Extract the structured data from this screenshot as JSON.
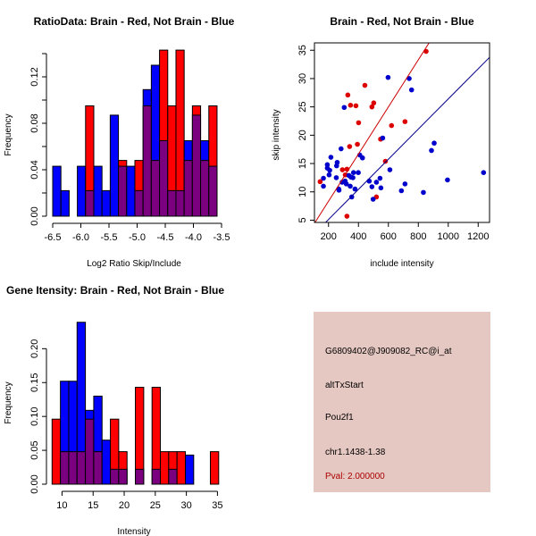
{
  "colors": {
    "brain": "#ff0000",
    "not_brain": "#0000ff",
    "overlap": "#7a0080",
    "info_bg": "#e6c8c2",
    "pval": "#aa0000"
  },
  "chart_data": [
    {
      "type": "bar",
      "subtype": "overlaid-histogram",
      "title": "RatioData: Brain - Red, Not Brain - Blue",
      "xlabel": "Log2 Ratio Skip/Include",
      "ylabel": "Frequency",
      "xlim": [
        -6.5,
        -3.5
      ],
      "ylim": [
        0,
        0.14
      ],
      "xticks": [
        "-6.5",
        "-6.0",
        "-5.5",
        "-5.0",
        "-4.5",
        "-4.0",
        "-3.5"
      ],
      "xtick_values": [
        -6.5,
        -6.0,
        -5.5,
        -5.0,
        -4.5,
        -4.0,
        -3.5
      ],
      "yticks": [
        "0.00",
        "0.04",
        "0.08",
        "0.12"
      ],
      "ytick_values": [
        0,
        0.04,
        0.08,
        0.12
      ],
      "bin_start": -6.5,
      "bin_width": 0.146,
      "series": [
        {
          "name": "Brain",
          "color": "red",
          "values": [
            0,
            0,
            0,
            0,
            0.095,
            0,
            0,
            0,
            0.048,
            0,
            0.048,
            0.095,
            0.048,
            0.143,
            0.095,
            0.143,
            0.048,
            0.095,
            0.048,
            0.095
          ]
        },
        {
          "name": "Not Brain",
          "color": "blue",
          "values": [
            0.043,
            0.022,
            0,
            0.043,
            0.022,
            0.043,
            0.022,
            0.087,
            0.043,
            0.043,
            0.022,
            0.109,
            0.13,
            0.065,
            0.022,
            0.022,
            0.065,
            0.087,
            0.065,
            0.043
          ]
        }
      ]
    },
    {
      "type": "scatter",
      "title": "Brain - Red, Not Brain - Blue",
      "xlabel": "include intensity",
      "ylabel": "skip intensity",
      "xlim": [
        106,
        1276
      ],
      "ylim": [
        4.6,
        36.3
      ],
      "xticks": [
        "200",
        "400",
        "600",
        "800",
        "1000",
        "1200"
      ],
      "xtick_values": [
        200,
        400,
        600,
        800,
        1000,
        1200
      ],
      "yticks": [
        "5",
        "10",
        "15",
        "20",
        "25",
        "30",
        "35"
      ],
      "ytick_values": [
        5,
        10,
        15,
        20,
        25,
        30,
        35
      ],
      "series": [
        {
          "name": "Brain",
          "color": "red",
          "fit": {
            "slope": 0.0416,
            "intercept": 0.03
          },
          "points": [
            [
              144,
              11.8
            ],
            [
              293,
              13.9
            ],
            [
              323,
              14.0
            ],
            [
              312,
              13.0
            ],
            [
              329,
              27.1
            ],
            [
              347,
              25.3
            ],
            [
              341,
              18.0
            ],
            [
              383,
              25.2
            ],
            [
              401,
              22.2
            ],
            [
              393,
              18.4
            ],
            [
              443,
              28.8
            ],
            [
              490,
              25.0
            ],
            [
              502,
              25.7
            ],
            [
              548,
              19.3
            ],
            [
              621,
              21.7
            ],
            [
              580,
              15.4
            ],
            [
              711,
              22.4
            ],
            [
              852,
              34.8
            ],
            [
              520,
              9.1
            ],
            [
              323,
              5.7
            ]
          ]
        },
        {
          "name": "Not Brain",
          "color": "blue",
          "fit": {
            "slope": 0.0266,
            "intercept": -0.2
          },
          "points": [
            [
              166,
              12.4
            ],
            [
              166,
              11.0
            ],
            [
              192,
              14.8
            ],
            [
              192,
              14.2
            ],
            [
              208,
              13.8
            ],
            [
              204,
              13.0
            ],
            [
              216,
              16.1
            ],
            [
              252,
              12.5
            ],
            [
              254,
              14.6
            ],
            [
              258,
              15.2
            ],
            [
              284,
              17.6
            ],
            [
              305,
              24.9
            ],
            [
              268,
              10.5
            ],
            [
              270,
              10.3
            ],
            [
              291,
              11.7
            ],
            [
              311,
              11.9
            ],
            [
              319,
              11.4
            ],
            [
              336,
              12.9
            ],
            [
              350,
              12.6
            ],
            [
              345,
              11.0
            ],
            [
              363,
              12.5
            ],
            [
              367,
              13.4
            ],
            [
              355,
              9.1
            ],
            [
              377,
              10.5
            ],
            [
              399,
              13.4
            ],
            [
              409,
              16.5
            ],
            [
              427,
              16.0
            ],
            [
              472,
              11.9
            ],
            [
              490,
              10.9
            ],
            [
              498,
              8.7
            ],
            [
              520,
              11.7
            ],
            [
              544,
              12.4
            ],
            [
              550,
              10.7
            ],
            [
              562,
              19.5
            ],
            [
              598,
              30.2
            ],
            [
              610,
              13.9
            ],
            [
              687,
              10.2
            ],
            [
              711,
              11.4
            ],
            [
              739,
              30.0
            ],
            [
              755,
              28.0
            ],
            [
              834,
              9.9
            ],
            [
              888,
              17.3
            ],
            [
              906,
              18.6
            ],
            [
              995,
              12.1
            ],
            [
              1236,
              13.4
            ]
          ]
        }
      ]
    },
    {
      "type": "bar",
      "subtype": "overlaid-histogram",
      "title": "Gene Itensity: Brain - Red, Not Brain - Blue",
      "xlabel": "Intensity",
      "ylabel": "Frequency",
      "xlim": [
        8.4,
        35.2
      ],
      "ylim": [
        0,
        0.24
      ],
      "xticks": [
        "10",
        "15",
        "20",
        "25",
        "30",
        "35"
      ],
      "xtick_values": [
        10,
        15,
        20,
        25,
        30,
        35
      ],
      "yticks": [
        "0.00",
        "0.05",
        "0.10",
        "0.15",
        "0.20"
      ],
      "ytick_values": [
        0,
        0.05,
        0.1,
        0.15,
        0.2
      ],
      "bin_start": 8.4,
      "bin_width": 1.34,
      "series": [
        {
          "name": "Brain",
          "color": "red",
          "values": [
            0.096,
            0.048,
            0.048,
            0.048,
            0.096,
            0.048,
            0,
            0.096,
            0.048,
            0,
            0.143,
            0,
            0.143,
            0.048,
            0.048,
            0.048,
            0,
            0,
            0,
            0.048
          ]
        },
        {
          "name": "Not Brain",
          "color": "blue",
          "values": [
            0,
            0.152,
            0.152,
            0.239,
            0.109,
            0.13,
            0.065,
            0.022,
            0.022,
            0,
            0.022,
            0,
            0.022,
            0,
            0.022,
            0,
            0.043,
            0,
            0,
            0
          ]
        }
      ]
    }
  ],
  "info": {
    "probe": "G6809402@J909082_RC@i_at",
    "event_type": "altTxStart",
    "gene": "Pou2f1",
    "location": "chr1.1438-1.38",
    "pval": "Pval: 2.000000"
  }
}
